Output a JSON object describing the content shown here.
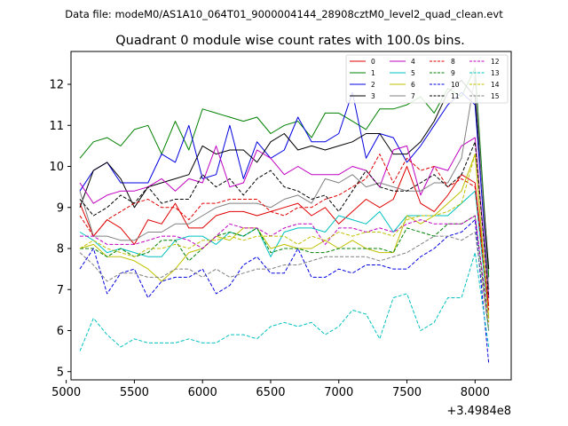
{
  "header": {
    "data_file": "Data file: modeM0/AS1A10_064T01_9000004144_28908cztM0_level2_quad_clean.evt"
  },
  "chart_data": {
    "type": "line",
    "title": "Quadrant 0 module wise count rates with 100.0s bins.",
    "xlabel": "",
    "ylabel": "",
    "offset_label": "+3.4984e8",
    "x_offset": 349840000,
    "xlim": [
      5035,
      8265
    ],
    "ylim": [
      4.8,
      12.8
    ],
    "x_ticks": [
      {
        "value": 5000,
        "label": "5000"
      },
      {
        "value": 5500,
        "label": "5500"
      },
      {
        "value": 6000,
        "label": "6000"
      },
      {
        "value": 6500,
        "label": "6500"
      },
      {
        "value": 7000,
        "label": "7000"
      },
      {
        "value": 7500,
        "label": "7500"
      },
      {
        "value": 8000,
        "label": "8000"
      }
    ],
    "y_ticks": [
      {
        "value": 5,
        "label": "5"
      },
      {
        "value": 6,
        "label": "6"
      },
      {
        "value": 7,
        "label": "7"
      },
      {
        "value": 8,
        "label": "8"
      },
      {
        "value": 9,
        "label": "9"
      },
      {
        "value": 10,
        "label": "10"
      },
      {
        "value": 11,
        "label": "11"
      },
      {
        "value": 12,
        "label": "12"
      }
    ],
    "legend_position": "top-right",
    "x": [
      5100,
      5200,
      5300,
      5400,
      5500,
      5600,
      5700,
      5800,
      5900,
      6000,
      6100,
      6200,
      6300,
      6400,
      6500,
      6600,
      6700,
      6800,
      6900,
      7000,
      7100,
      7200,
      7300,
      7400,
      7500,
      7600,
      7700,
      7800,
      7900,
      8000,
      8100
    ],
    "series": [
      {
        "name": "0",
        "color": "#e00000",
        "dash": "solid",
        "values": [
          9.1,
          8.3,
          8.7,
          8.5,
          8.1,
          8.7,
          8.6,
          9.1,
          8.5,
          8.5,
          8.8,
          8.9,
          8.9,
          8.8,
          8.9,
          9.0,
          9.1,
          8.8,
          9.0,
          8.6,
          8.9,
          9.2,
          9.0,
          9.2,
          10.0,
          9.1,
          8.9,
          9.3,
          9.8,
          9.6,
          6.6
        ]
      },
      {
        "name": "1",
        "color": "#008000",
        "dash": "solid",
        "values": [
          10.2,
          10.6,
          10.7,
          10.5,
          10.9,
          11.0,
          10.3,
          11.1,
          10.4,
          11.4,
          11.3,
          11.2,
          11.1,
          11.2,
          10.8,
          11.0,
          11.1,
          10.7,
          11.3,
          11.3,
          11.1,
          10.9,
          11.4,
          11.4,
          11.5,
          11.7,
          11.3,
          11.9,
          11.7,
          12.4,
          7.3
        ]
      },
      {
        "name": "2",
        "color": "#0000e0",
        "dash": "solid",
        "values": [
          9.4,
          9.9,
          10.1,
          9.6,
          9.6,
          9.6,
          10.3,
          10.1,
          11.0,
          9.7,
          9.8,
          11.0,
          9.7,
          10.6,
          10.2,
          10.4,
          11.2,
          10.6,
          10.6,
          10.8,
          11.8,
          10.2,
          10.8,
          10.7,
          10.1,
          10.5,
          11.0,
          11.5,
          11.8,
          11.5,
          7.0
        ]
      },
      {
        "name": "3",
        "color": "#000000",
        "dash": "solid",
        "values": [
          9.0,
          9.9,
          10.1,
          9.7,
          9.0,
          9.5,
          9.6,
          9.7,
          9.8,
          10.5,
          10.3,
          10.4,
          10.4,
          10.1,
          10.6,
          10.8,
          10.4,
          10.5,
          10.4,
          10.5,
          10.6,
          10.8,
          10.8,
          10.3,
          10.3,
          10.6,
          11.1,
          11.8,
          12.1,
          11.7,
          7.5
        ]
      },
      {
        "name": "4",
        "color": "#c000c0",
        "dash": "solid",
        "values": [
          9.6,
          9.1,
          9.3,
          9.4,
          9.4,
          9.5,
          9.7,
          9.4,
          9.7,
          9.6,
          10.5,
          9.5,
          9.6,
          10.4,
          10.2,
          9.8,
          10.0,
          9.8,
          9.8,
          9.8,
          10.0,
          9.9,
          9.5,
          10.4,
          10.5,
          9.3,
          10.0,
          9.9,
          10.5,
          10.7,
          6.8
        ]
      },
      {
        "name": "5",
        "color": "#00c0c0",
        "dash": "solid",
        "values": [
          8.4,
          8.2,
          7.9,
          8.0,
          7.9,
          7.8,
          7.8,
          8.2,
          8.3,
          8.3,
          8.1,
          8.4,
          8.3,
          8.5,
          7.8,
          8.4,
          8.5,
          8.5,
          8.4,
          8.8,
          8.7,
          8.6,
          8.9,
          8.4,
          8.8,
          8.8,
          8.8,
          8.8,
          9.1,
          9.4,
          6.3
        ]
      },
      {
        "name": "6",
        "color": "#c0c000",
        "dash": "solid",
        "values": [
          8.0,
          8.1,
          7.8,
          7.8,
          7.7,
          7.5,
          7.2,
          7.5,
          7.9,
          8.0,
          8.3,
          8.2,
          8.5,
          8.5,
          8.0,
          8.1,
          8.0,
          8.0,
          8.2,
          8.0,
          8.2,
          8.0,
          7.9,
          7.9,
          8.8,
          8.6,
          8.8,
          9.1,
          9.4,
          10.3,
          6.3
        ]
      },
      {
        "name": "7",
        "color": "#808080",
        "dash": "solid",
        "values": [
          9.4,
          8.3,
          8.3,
          8.2,
          8.2,
          8.4,
          8.4,
          8.6,
          8.6,
          8.8,
          9.0,
          9.1,
          9.1,
          9.1,
          9.0,
          9.2,
          9.3,
          9.1,
          9.7,
          9.6,
          9.8,
          9.5,
          9.6,
          9.5,
          9.4,
          9.4,
          9.6,
          9.6,
          10.2,
          12.2,
          7.0
        ]
      },
      {
        "name": "8",
        "color": "#e00000",
        "dash": "dashed",
        "values": [
          8.8,
          8.3,
          8.7,
          8.9,
          9.1,
          9.2,
          9.0,
          9.0,
          8.7,
          9.1,
          9.1,
          9.2,
          9.2,
          9.2,
          8.9,
          8.8,
          9.0,
          9.0,
          9.2,
          9.3,
          9.5,
          9.7,
          10.3,
          9.6,
          10.2,
          9.9,
          10.0,
          9.5,
          9.7,
          9.5,
          6.5
        ]
      },
      {
        "name": "9",
        "color": "#008000",
        "dash": "dashed",
        "values": [
          8.0,
          8.0,
          7.8,
          8.0,
          7.8,
          7.9,
          8.2,
          8.2,
          7.7,
          8.0,
          8.3,
          8.4,
          8.3,
          8.5,
          7.9,
          8.0,
          8.0,
          7.9,
          7.9,
          8.0,
          8.0,
          8.0,
          8.0,
          7.9,
          8.5,
          8.4,
          8.3,
          8.6,
          8.6,
          8.8,
          6.0
        ]
      },
      {
        "name": "10",
        "color": "#0000e0",
        "dash": "dashed",
        "values": [
          7.5,
          8.0,
          6.9,
          7.4,
          7.5,
          6.8,
          7.2,
          7.3,
          7.3,
          7.5,
          6.9,
          7.1,
          7.6,
          7.8,
          7.4,
          7.4,
          8.0,
          7.3,
          7.3,
          7.5,
          7.4,
          7.6,
          7.6,
          7.5,
          7.5,
          7.8,
          8.0,
          8.3,
          8.4,
          8.7,
          5.2
        ]
      },
      {
        "name": "11",
        "color": "#000000",
        "dash": "dashed",
        "values": [
          9.2,
          8.8,
          9.0,
          9.3,
          9.1,
          9.5,
          9.1,
          9.2,
          9.2,
          9.8,
          9.5,
          9.7,
          9.3,
          9.7,
          9.9,
          9.5,
          9.4,
          9.2,
          9.3,
          8.9,
          9.4,
          9.9,
          9.5,
          9.4,
          9.4,
          9.6,
          9.8,
          9.5,
          9.8,
          10.6,
          6.8
        ]
      },
      {
        "name": "12",
        "color": "#c000c0",
        "dash": "dashed",
        "values": [
          8.3,
          8.3,
          8.1,
          8.1,
          8.1,
          8.2,
          8.3,
          8.3,
          8.2,
          8.0,
          8.3,
          8.6,
          8.5,
          8.5,
          8.3,
          8.5,
          8.6,
          8.6,
          8.1,
          8.5,
          8.5,
          8.4,
          8.5,
          8.4,
          8.6,
          8.7,
          8.6,
          8.6,
          8.6,
          8.8,
          6.2
        ]
      },
      {
        "name": "13",
        "color": "#00c0c0",
        "dash": "dashed",
        "values": [
          5.5,
          6.3,
          5.9,
          5.6,
          5.8,
          5.7,
          5.7,
          5.7,
          5.8,
          5.7,
          5.7,
          5.9,
          5.9,
          5.8,
          6.1,
          6.2,
          6.1,
          6.2,
          5.9,
          6.1,
          6.5,
          6.4,
          5.8,
          6.8,
          6.9,
          6.0,
          6.2,
          6.8,
          6.8,
          7.9,
          5.6
        ]
      },
      {
        "name": "14",
        "color": "#c0c000",
        "dash": "dashed",
        "values": [
          8.0,
          8.2,
          8.0,
          7.9,
          7.8,
          8.0,
          8.0,
          8.1,
          8.0,
          8.2,
          8.2,
          8.3,
          8.2,
          8.3,
          8.3,
          8.3,
          8.1,
          8.3,
          8.2,
          8.4,
          8.3,
          8.4,
          8.4,
          8.3,
          8.7,
          8.8,
          8.8,
          8.9,
          9.1,
          10.3,
          6.2
        ]
      },
      {
        "name": "15",
        "color": "#808080",
        "dash": "dashed",
        "values": [
          7.9,
          7.6,
          7.2,
          7.4,
          7.4,
          7.3,
          7.3,
          7.5,
          7.5,
          7.3,
          7.5,
          7.3,
          7.4,
          7.5,
          7.5,
          7.6,
          7.6,
          7.7,
          7.8,
          7.8,
          7.8,
          7.8,
          7.7,
          7.8,
          7.9,
          8.1,
          8.3,
          8.3,
          8.2,
          8.4,
          6.0
        ]
      }
    ]
  }
}
